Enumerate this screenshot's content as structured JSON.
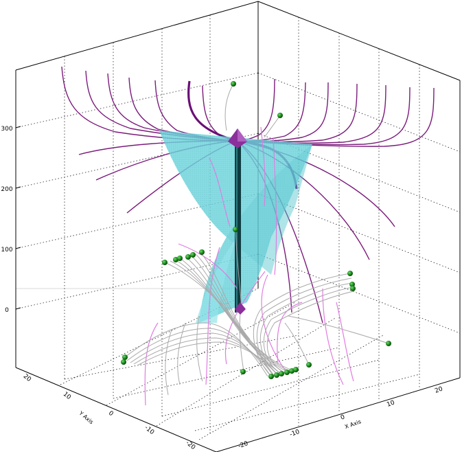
{
  "chart_data": {
    "type": "3d-streamlines",
    "title": "",
    "zlabel": "",
    "xlabel": "X Axis",
    "ylabel": "Y Axis",
    "grid": true,
    "z_ticks": [
      "0",
      "100",
      "200",
      "300"
    ],
    "x_ticks": [
      "-20",
      "-10",
      "0",
      "10",
      "20"
    ],
    "y_ticks": [
      "20",
      "10",
      "0",
      "-10",
      "-20"
    ],
    "colors": {
      "upper_streamlines": "#7b1a7b",
      "bold_streamlines": "#6a0f76",
      "pink_streamlines": "#e07ce0",
      "gray_streamlines": "#a9a9a9",
      "vortex_surface": "#5fd3dc",
      "core": "#0d3b40",
      "seed_points": "#1e8a1e",
      "markers": "#8b2f9b"
    }
  }
}
